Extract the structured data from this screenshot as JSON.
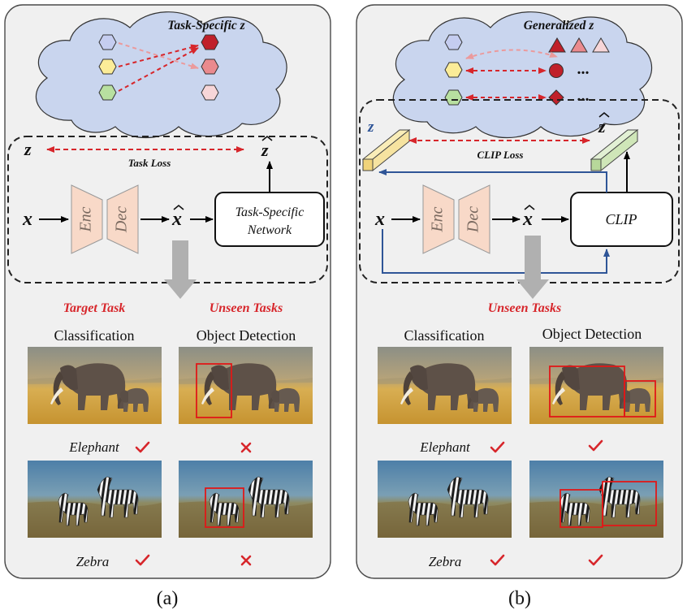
{
  "panel_a": {
    "cloud_title": "Task-Specific z",
    "z_label": "z",
    "z_hat_label": "z",
    "task_loss": "Task Loss",
    "x_label": "x",
    "x_hat_label": "x",
    "enc_label": "Enc",
    "dec_label": "Dec",
    "network_line1": "Task-Specific",
    "network_line2": "Network",
    "target_task": "Target Task",
    "unseen_tasks": "Unseen Tasks",
    "col1_header": "Classification",
    "col2_header": "Object Detection",
    "row1_label": "Elephant",
    "row2_label": "Zebra",
    "row1_classification": "check",
    "row1_detection": "cross",
    "row2_classification": "check",
    "row2_detection": "cross",
    "caption": "(a)"
  },
  "panel_b": {
    "cloud_title": "Generalized z",
    "ellipsis": "...",
    "z_label": "z",
    "z_hat_label": "z",
    "clip_loss": "CLIP Loss",
    "x_label": "x",
    "x_hat_label": "x",
    "enc_label": "Enc",
    "dec_label": "Dec",
    "clip_label": "CLIP",
    "unseen_tasks": "Unseen Tasks",
    "col1_header": "Classification",
    "col2_header": "Object Detection",
    "row1_label": "Elephant",
    "row2_label": "Zebra",
    "row1_classification": "check",
    "row1_detection": "check",
    "row2_classification": "check",
    "row2_detection": "check",
    "caption": "(b)"
  },
  "colors": {
    "accent_red": "#d7262b",
    "blue_arrow": "#2f5597",
    "cloud_fill": "#c9d5ee",
    "panel_fill": "#f0f0f0",
    "enc_dec_fill": "#f8d9c8",
    "hex_blue": "#c5cdf0",
    "hex_yellow": "#fbec98",
    "hex_green": "#b8e0a0",
    "hex_dark_red": "#c0202a",
    "hex_mid_red": "#ea8a8e",
    "hex_light_red": "#f7d6d8",
    "gray_arrow": "#b0b0b0",
    "cuboid_yellow": "#f6e3a0",
    "cuboid_green": "#cfe6b8"
  }
}
